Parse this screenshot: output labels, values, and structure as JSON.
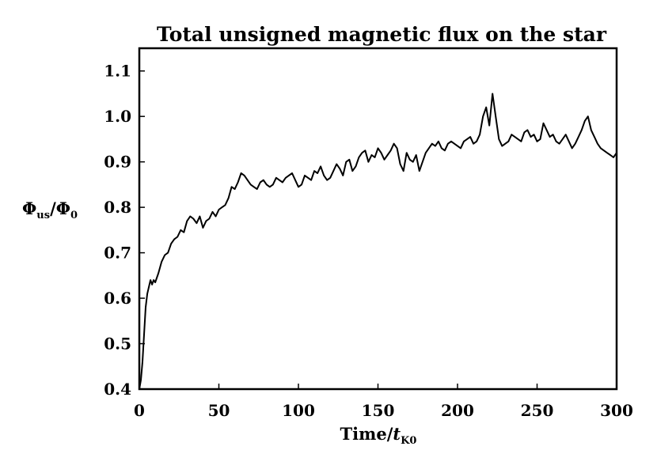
{
  "chart_data": {
    "type": "line",
    "title": "Total unsigned magnetic flux on the star",
    "xlabel": {
      "main": "Time/",
      "var": "t",
      "sub": "K0"
    },
    "ylabel": {
      "main": "Φ",
      "sub": "us",
      "mid": "/Φ",
      "sub2": "0"
    },
    "xlim": [
      0,
      300
    ],
    "ylim": [
      0.4,
      1.15
    ],
    "xticks": [
      0,
      50,
      100,
      150,
      200,
      250,
      300
    ],
    "xtick_labels": [
      "0",
      "50",
      "100",
      "150",
      "200",
      "250",
      "300"
    ],
    "yticks": [
      0.4,
      0.5,
      0.6,
      0.7,
      0.8,
      0.9,
      1.0,
      1.1
    ],
    "ytick_labels": [
      "0.4",
      "0.5",
      "0.6",
      "0.7",
      "0.8",
      "0.9",
      "1.0",
      "1.1"
    ],
    "grid": false,
    "line_color": "#000000",
    "series": [
      {
        "x": [
          0,
          1,
          2,
          3,
          4,
          5,
          6,
          7,
          8,
          9,
          10,
          12,
          14,
          16,
          18,
          20,
          22,
          24,
          26,
          28,
          30,
          32,
          34,
          36,
          38,
          40,
          42,
          44,
          46,
          48,
          50,
          52,
          54,
          56,
          58,
          60,
          62,
          64,
          66,
          68,
          70,
          72,
          74,
          76,
          78,
          80,
          82,
          84,
          86,
          88,
          90,
          92,
          94,
          96,
          98,
          100,
          102,
          104,
          106,
          108,
          110,
          112,
          114,
          116,
          118,
          120,
          122,
          124,
          126,
          128,
          130,
          132,
          134,
          136,
          138,
          140,
          142,
          144,
          146,
          148,
          150,
          152,
          154,
          156,
          158,
          160,
          162,
          164,
          166,
          168,
          170,
          172,
          174,
          176,
          178,
          180,
          182,
          184,
          186,
          188,
          190,
          192,
          194,
          196,
          198,
          200,
          202,
          204,
          206,
          208,
          210,
          212,
          214,
          216,
          218,
          220,
          222,
          224,
          226,
          228,
          230,
          232,
          234,
          236,
          238,
          240,
          242,
          244,
          246,
          248,
          250,
          252,
          254,
          256,
          258,
          260,
          262,
          264,
          266,
          268,
          270,
          272,
          274,
          276,
          278,
          280,
          282,
          284,
          286,
          288,
          290,
          292,
          294,
          296,
          298,
          300
        ],
        "y": [
          0.4,
          0.42,
          0.46,
          0.52,
          0.58,
          0.61,
          0.625,
          0.64,
          0.63,
          0.64,
          0.635,
          0.655,
          0.68,
          0.695,
          0.7,
          0.72,
          0.73,
          0.735,
          0.75,
          0.745,
          0.77,
          0.78,
          0.775,
          0.765,
          0.78,
          0.755,
          0.77,
          0.775,
          0.79,
          0.78,
          0.795,
          0.8,
          0.805,
          0.82,
          0.845,
          0.84,
          0.855,
          0.875,
          0.87,
          0.86,
          0.85,
          0.845,
          0.84,
          0.855,
          0.86,
          0.85,
          0.845,
          0.85,
          0.865,
          0.86,
          0.855,
          0.865,
          0.87,
          0.875,
          0.86,
          0.845,
          0.85,
          0.87,
          0.865,
          0.86,
          0.88,
          0.875,
          0.89,
          0.87,
          0.86,
          0.865,
          0.88,
          0.895,
          0.885,
          0.87,
          0.9,
          0.905,
          0.88,
          0.89,
          0.91,
          0.92,
          0.925,
          0.9,
          0.915,
          0.91,
          0.93,
          0.92,
          0.905,
          0.915,
          0.925,
          0.94,
          0.93,
          0.895,
          0.88,
          0.92,
          0.905,
          0.9,
          0.915,
          0.88,
          0.9,
          0.92,
          0.93,
          0.94,
          0.935,
          0.945,
          0.93,
          0.925,
          0.94,
          0.945,
          0.94,
          0.935,
          0.93,
          0.945,
          0.95,
          0.955,
          0.94,
          0.945,
          0.96,
          1.0,
          1.02,
          0.98,
          1.05,
          1.0,
          0.95,
          0.935,
          0.94,
          0.945,
          0.96,
          0.955,
          0.95,
          0.945,
          0.965,
          0.97,
          0.955,
          0.96,
          0.945,
          0.95,
          0.985,
          0.97,
          0.955,
          0.96,
          0.945,
          0.94,
          0.95,
          0.96,
          0.945,
          0.93,
          0.94,
          0.955,
          0.97,
          0.99,
          1.0,
          0.97,
          0.955,
          0.94,
          0.93,
          0.925,
          0.92,
          0.915,
          0.91,
          0.92
        ]
      }
    ]
  }
}
